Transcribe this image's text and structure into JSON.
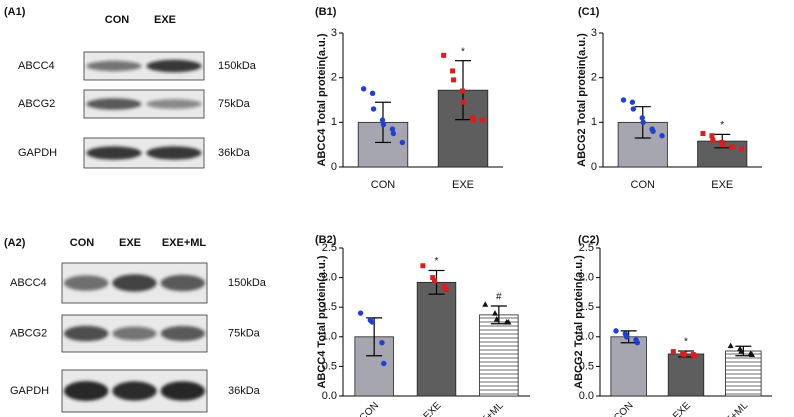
{
  "blots": [
    {
      "label": "(A1)",
      "lanes": [
        "CON",
        "EXE"
      ],
      "rows": [
        {
          "protein": "ABCC4",
          "size": "150kDa"
        },
        {
          "protein": "ABCG2",
          "size": "75kDa"
        },
        {
          "protein": "GAPDH",
          "size": "36kDa"
        }
      ]
    },
    {
      "label": "(A2)",
      "lanes": [
        "CON",
        "EXE",
        "EXE+ML"
      ],
      "rows": [
        {
          "protein": "ABCC4",
          "size": "150kDa"
        },
        {
          "protein": "ABCG2",
          "size": "75kDa"
        },
        {
          "protein": "GAPDH",
          "size": "36kDa"
        }
      ]
    }
  ],
  "chart_data": [
    {
      "type": "bar",
      "panel_label": "(B1)",
      "y_label": "ABCC4 Total protein(a.u.)",
      "categories": [
        "CON",
        "EXE"
      ],
      "values": [
        1.0,
        1.72
      ],
      "errors": [
        0.45,
        0.66
      ],
      "colors": [
        "#a6a6b0",
        "#5e5e5e"
      ],
      "hatched": [
        false,
        false
      ],
      "points": [
        [
          1.75,
          1.65,
          1.3,
          1.05,
          0.95,
          0.85,
          0.75,
          0.55
        ],
        [
          2.5,
          2.15,
          1.95,
          1.7,
          1.45,
          1.1,
          1.05,
          1.05
        ]
      ],
      "point_colors": [
        "#1f3fd6",
        "#e01b1b"
      ],
      "point_markers": [
        "circle",
        "square"
      ],
      "annotations": [
        null,
        "*"
      ],
      "ylim": [
        0,
        3
      ],
      "yticks": [
        0,
        1,
        2,
        3
      ]
    },
    {
      "type": "bar",
      "panel_label": "(C1)",
      "y_label": "ABCG2 Total protein(a.u.)",
      "categories": [
        "CON",
        "EXE"
      ],
      "values": [
        1.0,
        0.58
      ],
      "errors": [
        0.35,
        0.15
      ],
      "colors": [
        "#a6a6b0",
        "#5e5e5e"
      ],
      "hatched": [
        false,
        false
      ],
      "points": [
        [
          1.5,
          1.45,
          1.3,
          1.1,
          1.0,
          0.85,
          0.8,
          0.7
        ],
        [
          0.75,
          0.7,
          0.6,
          0.55,
          0.5,
          0.45,
          0.45,
          0.4
        ]
      ],
      "point_colors": [
        "#1f3fd6",
        "#e01b1b"
      ],
      "point_markers": [
        "circle",
        "square"
      ],
      "annotations": [
        null,
        "*"
      ],
      "ylim": [
        0,
        3
      ],
      "yticks": [
        0,
        1,
        2,
        3
      ]
    },
    {
      "type": "bar",
      "panel_label": "(B2)",
      "y_label": "ABCC4 Total protein(a.u.)",
      "categories": [
        "CON",
        "EXE",
        "EXE+ML"
      ],
      "values": [
        1.0,
        1.92,
        1.37
      ],
      "errors": [
        0.32,
        0.2,
        0.15
      ],
      "colors": [
        "#a6a6b0",
        "#5e5e5e",
        "#ffffff"
      ],
      "hatched": [
        false,
        false,
        true
      ],
      "points": [
        [
          1.4,
          1.28,
          1.25,
          0.9,
          0.55
        ],
        [
          2.2,
          2.0,
          1.95,
          1.85,
          1.8
        ],
        [
          1.55,
          1.4,
          1.3,
          1.25,
          1.25
        ]
      ],
      "point_colors": [
        "#1f3fd6",
        "#e01b1b",
        "#111111"
      ],
      "point_markers": [
        "circle",
        "square",
        "triangle"
      ],
      "annotations": [
        null,
        "*",
        "#"
      ],
      "ylim": [
        0,
        2.5
      ],
      "yticks": [
        {
          "value": 0,
          "label": "0.0"
        },
        {
          "value": 0.5,
          "label": "0.5"
        },
        {
          "value": 1,
          "label": "1.0"
        },
        {
          "value": 1.5,
          "label": "1.5"
        },
        {
          "value": 2,
          "label": "2.0"
        },
        {
          "value": 2.5,
          "label": "2.5"
        }
      ]
    },
    {
      "type": "bar",
      "panel_label": "(C2)",
      "y_label": "ABCG2 Total protein(a.u.)",
      "categories": [
        "CON",
        "EXE",
        "EXE+ML"
      ],
      "values": [
        1.0,
        0.71,
        0.76
      ],
      "errors": [
        0.1,
        0.05,
        0.08
      ],
      "colors": [
        "#a6a6b0",
        "#5e5e5e",
        "#ffffff"
      ],
      "hatched": [
        false,
        false,
        true
      ],
      "points": [
        [
          1.1,
          1.05,
          1.0,
          0.95,
          0.9
        ],
        [
          0.75,
          0.72,
          0.7,
          0.7,
          0.68
        ],
        [
          0.85,
          0.8,
          0.76,
          0.72,
          0.7
        ]
      ],
      "point_colors": [
        "#1f3fd6",
        "#e01b1b",
        "#111111"
      ],
      "point_markers": [
        "circle",
        "square",
        "triangle"
      ],
      "annotations": [
        null,
        "*",
        null
      ],
      "ylim": [
        0,
        2.5
      ],
      "yticks": [
        {
          "value": 0,
          "label": "0.0"
        },
        {
          "value": 0.5,
          "label": "0.5"
        },
        {
          "value": 1,
          "label": "1.0"
        },
        {
          "value": 1.5,
          "label": "1.5"
        },
        {
          "value": 2,
          "label": "2.0"
        },
        {
          "value": 2.5,
          "label": "2.5"
        }
      ]
    }
  ]
}
